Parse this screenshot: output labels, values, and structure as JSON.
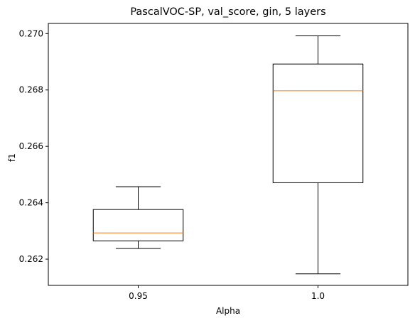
{
  "chart_data": {
    "type": "box",
    "title": "PascalVOC-SP, val_score, gin, 5 layers",
    "xlabel": "Alpha",
    "ylabel": "f1",
    "categories": [
      "0.95",
      "1.0"
    ],
    "boxes": [
      {
        "category": "0.95",
        "whisker_low": 0.26238,
        "q1": 0.26265,
        "median": 0.26293,
        "q3": 0.26376,
        "whisker_high": 0.26457
      },
      {
        "category": "1.0",
        "whisker_low": 0.26148,
        "q1": 0.26471,
        "median": 0.26797,
        "q3": 0.26892,
        "whisker_high": 0.26992
      }
    ],
    "ylim": [
      0.26107,
      0.27036
    ],
    "yticks": [
      "0.262",
      "0.264",
      "0.266",
      "0.268",
      "0.270"
    ],
    "ytick_values": [
      0.262,
      0.264,
      0.266,
      0.268,
      0.27
    ],
    "median_color": "#ff7f0e",
    "box_color": "#000000",
    "grid": false,
    "legend": "none"
  }
}
